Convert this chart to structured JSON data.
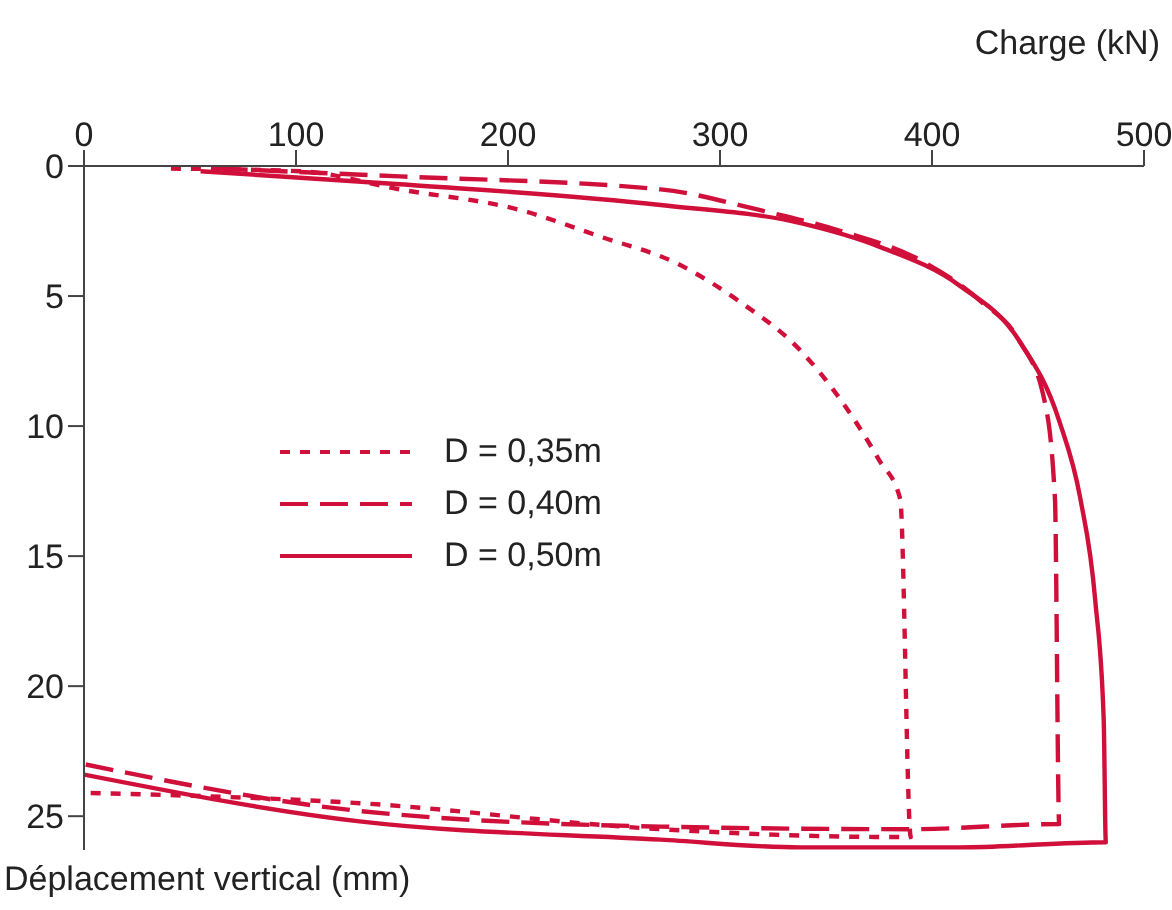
{
  "chart_data": {
    "type": "line",
    "xlabel": "Charge (kN)",
    "ylabel": "Déplacement vertical (mm)",
    "xlim": [
      0,
      500
    ],
    "xticks": [
      0,
      100,
      200,
      300,
      400,
      500
    ],
    "ylim": [
      26.3,
      0
    ],
    "yticks": [
      0,
      5,
      10,
      15,
      20,
      25
    ],
    "grid": false,
    "legend": "left",
    "marker": "none",
    "series": [
      {
        "name": "D = 0,35m",
        "color": "#d0103a",
        "line_style": "dotted",
        "x": [
          41,
          102,
          149,
          206,
          243,
          281,
          309,
          338,
          357,
          375,
          385,
          390,
          380,
          272,
          130,
          0
        ],
        "values": [
          0.1,
          0.2,
          0.9,
          1.7,
          2.7,
          3.8,
          5.2,
          7.1,
          9,
          11.3,
          12.8,
          25.8,
          25.8,
          25.5,
          24.5,
          24.1
        ]
      },
      {
        "name": "D = 0,40m",
        "color": "#d0103a",
        "line_style": "dashed",
        "x": [
          64,
          149,
          272,
          319,
          357,
          394,
          423,
          441,
          453,
          458,
          460,
          390,
          272,
          130,
          0
        ],
        "values": [
          0.1,
          0.4,
          0.9,
          1.7,
          2.5,
          3.6,
          5.2,
          6.7,
          9,
          12.8,
          25.3,
          25.5,
          25.4,
          24.8,
          23
        ]
      },
      {
        "name": "D = 0,50m",
        "color": "#d0103a",
        "line_style": "solid",
        "x": [
          55,
          149,
          272,
          338,
          375,
          413,
          441,
          460,
          470,
          477,
          481,
          482,
          413,
          338,
          272,
          130,
          0
        ],
        "values": [
          0.2,
          0.7,
          1.5,
          2.2,
          3.1,
          4.6,
          6.7,
          9.8,
          12.8,
          16.7,
          21.3,
          26,
          26.2,
          26.2,
          25.9,
          25.2,
          23.4
        ]
      }
    ]
  }
}
